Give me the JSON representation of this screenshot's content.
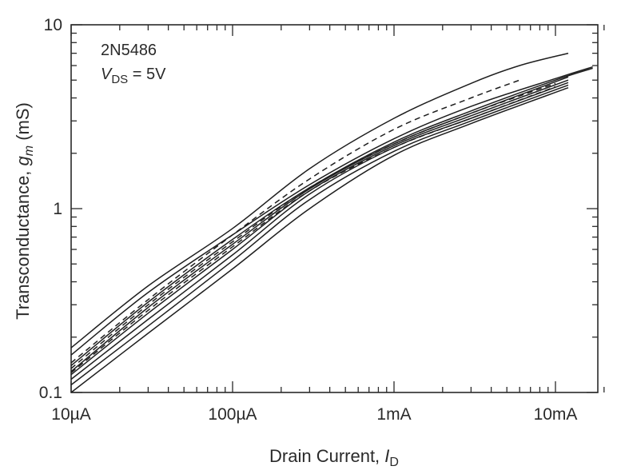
{
  "chart_data": {
    "type": "line",
    "x_scale": "log",
    "y_scale": "log",
    "xlim": [
      1e-05,
      0.02
    ],
    "ylim": [
      0.1,
      10
    ],
    "x_ticks": [
      {
        "value": 1e-05,
        "label": "10µA"
      },
      {
        "value": 0.0001,
        "label": "100µA"
      },
      {
        "value": 0.001,
        "label": "1mA"
      },
      {
        "value": 0.01,
        "label": "10mA"
      }
    ],
    "y_ticks": [
      {
        "value": 0.1,
        "label": "0.1"
      },
      {
        "value": 1,
        "label": "1"
      },
      {
        "value": 10,
        "label": "10"
      }
    ],
    "xlabel": {
      "main": "Drain Current, ",
      "var": "I",
      "sub": "D"
    },
    "ylabel": {
      "main": "Transconductance, ",
      "var": "g",
      "sub": "m",
      "unit": "  (mS)"
    },
    "annotation": {
      "part": "2N5486",
      "cond_var": "V",
      "cond_sub": "DS",
      "cond_value": " = 5V"
    },
    "grid": false,
    "legend": "none",
    "series": [
      {
        "style": "solid",
        "points": [
          [
            1e-05,
            0.175
          ],
          [
            3e-05,
            0.38
          ],
          [
            0.0001,
            0.78
          ],
          [
            0.0003,
            1.65
          ],
          [
            0.001,
            3.1
          ],
          [
            0.003,
            4.8
          ],
          [
            0.006,
            6.0
          ],
          [
            0.012,
            7.0
          ]
        ]
      },
      {
        "style": "solid",
        "points": [
          [
            1e-05,
            0.16
          ],
          [
            3e-05,
            0.35
          ],
          [
            0.0001,
            0.72
          ],
          [
            0.0003,
            1.35
          ],
          [
            0.001,
            2.4
          ],
          [
            0.003,
            3.6
          ],
          [
            0.01,
            5.1
          ],
          [
            0.017,
            5.9
          ]
        ]
      },
      {
        "style": "solid",
        "points": [
          [
            1e-05,
            0.14
          ],
          [
            3e-05,
            0.31
          ],
          [
            0.0001,
            0.68
          ],
          [
            0.0003,
            1.3
          ],
          [
            0.001,
            2.3
          ],
          [
            0.003,
            3.4
          ],
          [
            0.01,
            5.0
          ],
          [
            0.017,
            5.8
          ]
        ]
      },
      {
        "style": "solid",
        "points": [
          [
            1e-05,
            0.13
          ],
          [
            3e-05,
            0.29
          ],
          [
            0.0001,
            0.64
          ],
          [
            0.0003,
            1.28
          ],
          [
            0.001,
            2.25
          ],
          [
            0.003,
            3.3
          ],
          [
            0.012,
            5.2
          ]
        ]
      },
      {
        "style": "solid",
        "points": [
          [
            1e-05,
            0.125
          ],
          [
            3e-05,
            0.27
          ],
          [
            0.0001,
            0.6
          ],
          [
            0.0003,
            1.25
          ],
          [
            0.001,
            2.2
          ],
          [
            0.003,
            3.2
          ],
          [
            0.012,
            5.0
          ]
        ]
      },
      {
        "style": "solid",
        "points": [
          [
            1e-05,
            0.118
          ],
          [
            3e-05,
            0.25
          ],
          [
            0.0001,
            0.56
          ],
          [
            0.0003,
            1.2
          ],
          [
            0.001,
            2.15
          ],
          [
            0.003,
            3.1
          ],
          [
            0.012,
            4.85
          ]
        ]
      },
      {
        "style": "solid",
        "points": [
          [
            1e-05,
            0.11
          ],
          [
            3e-05,
            0.23
          ],
          [
            0.0001,
            0.52
          ],
          [
            0.0003,
            1.12
          ],
          [
            0.001,
            2.05
          ],
          [
            0.003,
            3.0
          ],
          [
            0.012,
            4.7
          ]
        ]
      },
      {
        "style": "solid",
        "points": [
          [
            1e-05,
            0.1
          ],
          [
            3e-05,
            0.21
          ],
          [
            0.0001,
            0.47
          ],
          [
            0.0003,
            1.0
          ],
          [
            0.001,
            1.95
          ],
          [
            0.003,
            2.9
          ],
          [
            0.012,
            4.55
          ]
        ]
      },
      {
        "style": "dashed",
        "points": [
          [
            1e-05,
            0.145
          ],
          [
            3e-05,
            0.32
          ],
          [
            0.0001,
            0.72
          ],
          [
            0.0003,
            1.45
          ],
          [
            0.001,
            2.7
          ],
          [
            0.003,
            4.0
          ],
          [
            0.006,
            5.0
          ]
        ]
      },
      {
        "style": "dashed",
        "points": [
          [
            1e-05,
            0.135
          ],
          [
            3e-05,
            0.3
          ],
          [
            0.0001,
            0.66
          ],
          [
            0.0003,
            1.3
          ],
          [
            0.001,
            2.25
          ],
          [
            0.003,
            3.3
          ],
          [
            0.01,
            4.8
          ]
        ]
      },
      {
        "style": "dashed",
        "points": [
          [
            1e-05,
            0.128
          ],
          [
            3e-05,
            0.28
          ],
          [
            0.0001,
            0.62
          ],
          [
            0.0003,
            1.25
          ],
          [
            0.001,
            2.15
          ],
          [
            0.003,
            3.1
          ],
          [
            0.01,
            4.6
          ]
        ]
      }
    ]
  }
}
